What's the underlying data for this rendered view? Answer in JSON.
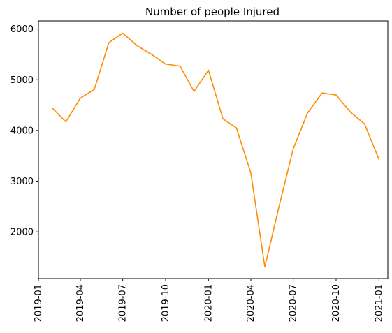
{
  "chart_data": {
    "type": "line",
    "title": "Number of people Injured",
    "xlabel": "",
    "ylabel": "",
    "x": [
      "2019-02",
      "2019-03",
      "2019-04",
      "2019-05",
      "2019-06",
      "2019-07",
      "2019-08",
      "2019-09",
      "2019-10",
      "2019-11",
      "2019-12",
      "2020-01",
      "2020-02",
      "2020-03",
      "2020-04",
      "2020-05",
      "2020-06",
      "2020-07",
      "2020-08",
      "2020-09",
      "2020-10",
      "2020-11",
      "2020-12",
      "2021-01"
    ],
    "series": [
      {
        "values": [
          4430,
          4170,
          4640,
          4810,
          5730,
          5920,
          5670,
          5500,
          5310,
          5270,
          4770,
          5190,
          4230,
          4050,
          3160,
          1310,
          2520,
          3640,
          4350,
          4740,
          4700,
          4360,
          4130,
          3430
        ],
        "color": "#ff8c00"
      }
    ],
    "x_ticks": [
      "2019-01",
      "2019-04",
      "2019-07",
      "2019-10",
      "2020-01",
      "2020-04",
      "2020-07",
      "2020-10",
      "2021-01"
    ],
    "y_ticks": [
      2000,
      3000,
      4000,
      5000,
      6000
    ],
    "xlim": [
      "2019-01-01",
      "2021-01-20"
    ],
    "ylim": [
      1080,
      6160
    ],
    "grid": false,
    "legend": "none"
  }
}
